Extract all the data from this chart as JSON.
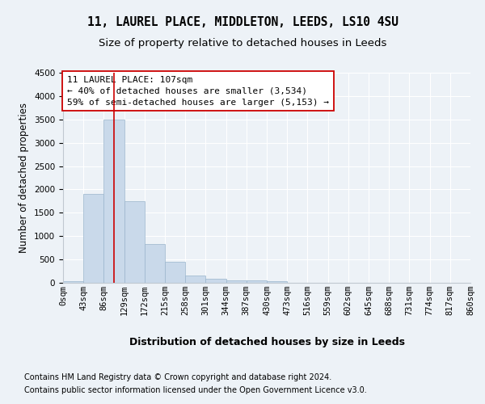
{
  "title1": "11, LAUREL PLACE, MIDDLETON, LEEDS, LS10 4SU",
  "title2": "Size of property relative to detached houses in Leeds",
  "xlabel": "Distribution of detached houses by size in Leeds",
  "ylabel": "Number of detached properties",
  "bin_labels": [
    "0sqm",
    "43sqm",
    "86sqm",
    "129sqm",
    "172sqm",
    "215sqm",
    "258sqm",
    "301sqm",
    "344sqm",
    "387sqm",
    "430sqm",
    "473sqm",
    "516sqm",
    "559sqm",
    "602sqm",
    "645sqm",
    "688sqm",
    "731sqm",
    "774sqm",
    "817sqm",
    "860sqm"
  ],
  "bin_edges": [
    0,
    43,
    86,
    129,
    172,
    215,
    258,
    301,
    344,
    387,
    430,
    473,
    516,
    559,
    602,
    645,
    688,
    731,
    774,
    817,
    860
  ],
  "bar_values": [
    30,
    1900,
    3500,
    1750,
    830,
    450,
    160,
    90,
    60,
    50,
    40,
    0,
    0,
    0,
    0,
    0,
    0,
    0,
    0,
    0
  ],
  "bar_color": "#c9d9ea",
  "bar_edge_color": "#9ab5cc",
  "property_size": 107,
  "red_line_color": "#cc0000",
  "annotation_line1": "11 LAUREL PLACE: 107sqm",
  "annotation_line2": "← 40% of detached houses are smaller (3,534)",
  "annotation_line3": "59% of semi-detached houses are larger (5,153) →",
  "annotation_box_facecolor": "#ffffff",
  "annotation_box_edgecolor": "#cc0000",
  "ylim": [
    0,
    4500
  ],
  "yticks": [
    0,
    500,
    1000,
    1500,
    2000,
    2500,
    3000,
    3500,
    4000,
    4500
  ],
  "bg_color": "#edf2f7",
  "grid_color": "#ffffff",
  "title1_fontsize": 10.5,
  "title2_fontsize": 9.5,
  "ylabel_fontsize": 8.5,
  "xlabel_fontsize": 9,
  "tick_fontsize": 7.5,
  "annotation_fontsize": 8,
  "footnote_fontsize": 7,
  "footnote1": "Contains HM Land Registry data © Crown copyright and database right 2024.",
  "footnote2": "Contains public sector information licensed under the Open Government Licence v3.0."
}
